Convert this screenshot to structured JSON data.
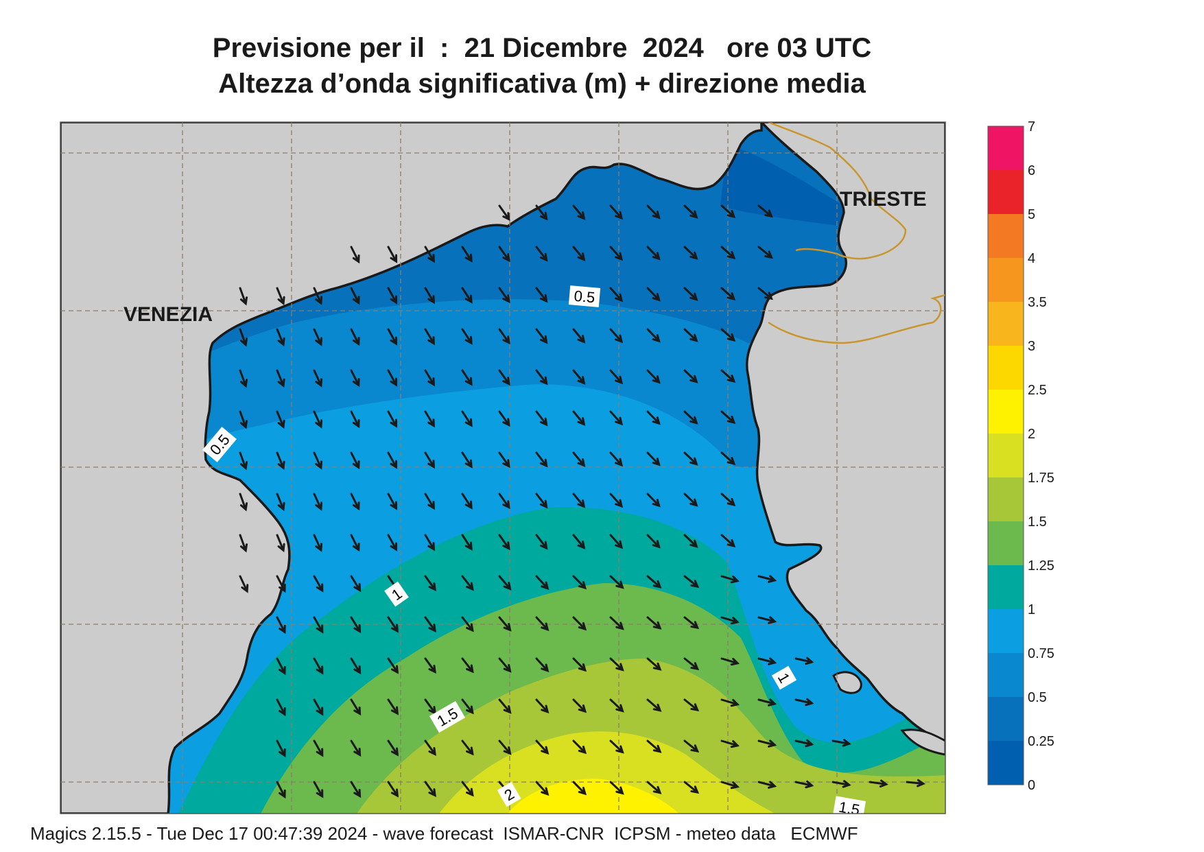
{
  "title_line1": "Previsione per il  :  21 Dicembre  2024   ore 03 UTC",
  "title_line2": "Altezza d’onda significativa (m) + direzione media",
  "cities": {
    "venezia": "VENEZIA",
    "trieste": "TRIESTE"
  },
  "contour_labels": [
    "0.5",
    "0.5",
    "1",
    "1",
    "1.5",
    "1.5",
    "2"
  ],
  "legend": {
    "levels": [
      "7",
      "6",
      "5",
      "4",
      "3.5",
      "3",
      "2.5",
      "2",
      "1.75",
      "1.5",
      "1.25",
      "1",
      "0.75",
      "0.5",
      "0.25",
      "0"
    ],
    "colors": [
      "#ef1464",
      "#ea2229",
      "#f37a22",
      "#f6961e",
      "#f9b51c",
      "#fcd700",
      "#fff200",
      "#d9e021",
      "#a7c739",
      "#6cb94d",
      "#00a99d",
      "#0b9fe1",
      "#0a88cf",
      "#0771bb",
      "#005faf"
    ]
  },
  "colors": {
    "land": "#cccccd",
    "coast": "#1a1a1a",
    "border": "#c8962d",
    "grid": "#8c7e6a",
    "arrow": "#1a1a1a"
  },
  "footer": "Magics 2.15.5 - Tue Dec 17 00:47:39 2024 - wave forecast  ISMAR-CNR  ICPSM - meteo data   ECMWF"
}
